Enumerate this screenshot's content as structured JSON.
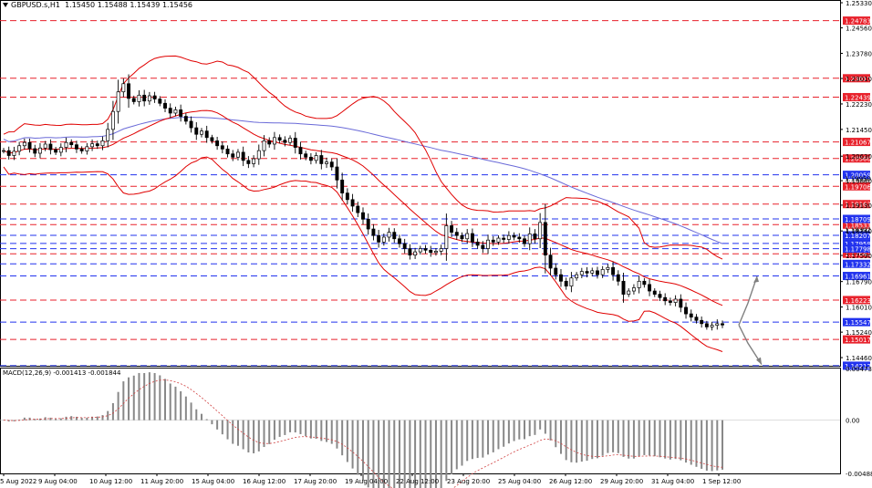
{
  "header": {
    "symbol": "GBPUSD.s,H1",
    "ohlc": "1.15450 1.15488 1.15439 1.15456"
  },
  "macd": {
    "label": "MACD(12,26,9) -0.001413 -0.001844"
  },
  "colors": {
    "red_level": "#e8222c",
    "blue_level": "#2233ee",
    "bollinger": "#e00000",
    "ma": "#6a6ad8",
    "candle": "#000000",
    "arrow": "#808080"
  },
  "chart_data": [
    {
      "type": "line",
      "name": "price",
      "ylim": [
        1.1421,
        1.2533
      ],
      "y_ticks": [
        "1.25330",
        "1.24560",
        "1.23780",
        "1.23010",
        "1.22230",
        "1.21450",
        "1.20630",
        "1.19880",
        "1.19130",
        "1.18340",
        "1.17590",
        "1.16790",
        "1.16010",
        "1.15240",
        "1.14460"
      ],
      "x_ticks": [
        "5 Aug 2022",
        "9 Aug 04:00",
        "10 Aug 12:00",
        "11 Aug 20:00",
        "15 Aug 04:00",
        "16 Aug 12:00",
        "17 Aug 20:00",
        "19 Aug 04:00",
        "22 Aug 12:00",
        "23 Aug 20:00",
        "25 Aug 04:00",
        "26 Aug 12:00",
        "29 Aug 20:00",
        "31 Aug 04:00",
        "1 Sep 12:00"
      ],
      "levels_red": [
        "1.24783",
        "1.23017",
        "1.22439",
        "1.21067",
        "1.20560",
        "1.19706",
        "1.19163",
        "1.18533",
        "1.17641",
        "1.16223",
        "1.15017"
      ],
      "levels_blue": [
        "1.20059",
        "1.18709",
        "1.18207",
        "1.17959",
        "1.17798",
        "1.17332",
        "1.16961",
        "1.15547",
        "1.14212"
      ],
      "label_extra": [
        "1.18392",
        "1.19950"
      ],
      "close_series": [
        1.208,
        1.2065,
        1.2078,
        1.2095,
        1.2105,
        1.2086,
        1.2072,
        1.2088,
        1.21,
        1.2083,
        1.2075,
        1.209,
        1.2105,
        1.2098,
        1.2085,
        1.2079,
        1.2092,
        1.2101,
        1.2095,
        1.211,
        1.2145,
        1.22,
        1.226,
        1.2285,
        1.224,
        1.223,
        1.225,
        1.2232,
        1.2248,
        1.2238,
        1.2225,
        1.221,
        1.2195,
        1.2205,
        1.2185,
        1.217,
        1.215,
        1.213,
        1.214,
        1.212,
        1.211,
        1.2095,
        1.2085,
        1.207,
        1.206,
        1.2075,
        1.205,
        1.204,
        1.2055,
        1.208,
        1.211,
        1.21,
        1.212,
        1.2112,
        1.2105,
        1.2118,
        1.209,
        1.207,
        1.206,
        1.205,
        1.2065,
        1.204,
        1.2045,
        1.203,
        1.199,
        1.195,
        1.193,
        1.191,
        1.189,
        1.187,
        1.184,
        1.182,
        1.18,
        1.1815,
        1.183,
        1.181,
        1.1795,
        1.178,
        1.176,
        1.177,
        1.178,
        1.1775,
        1.1768,
        1.1772,
        1.178,
        1.185,
        1.183,
        1.182,
        1.181,
        1.1826,
        1.18,
        1.179,
        1.178,
        1.1806,
        1.18,
        1.1812,
        1.1808,
        1.182,
        1.1815,
        1.181,
        1.1795,
        1.1825,
        1.181,
        1.186,
        1.176,
        1.172,
        1.17,
        1.168,
        1.1665,
        1.169,
        1.17,
        1.171,
        1.1705,
        1.1712,
        1.17,
        1.1716,
        1.1722,
        1.17,
        1.168,
        1.164,
        1.165,
        1.166,
        1.168,
        1.167,
        1.165,
        1.164,
        1.163,
        1.162,
        1.1615,
        1.1625,
        1.16,
        1.158,
        1.157,
        1.156,
        1.155,
        1.154,
        1.1545,
        1.155,
        1.1546
      ]
    },
    {
      "type": "bar",
      "name": "MACD(12,26,9)",
      "ylim": [
        -0.004889,
        0.004738
      ],
      "y_ticks": [
        "0.004738",
        "0.00",
        "-0.004889"
      ],
      "main": -0.001413,
      "signal": -0.001844
    }
  ]
}
